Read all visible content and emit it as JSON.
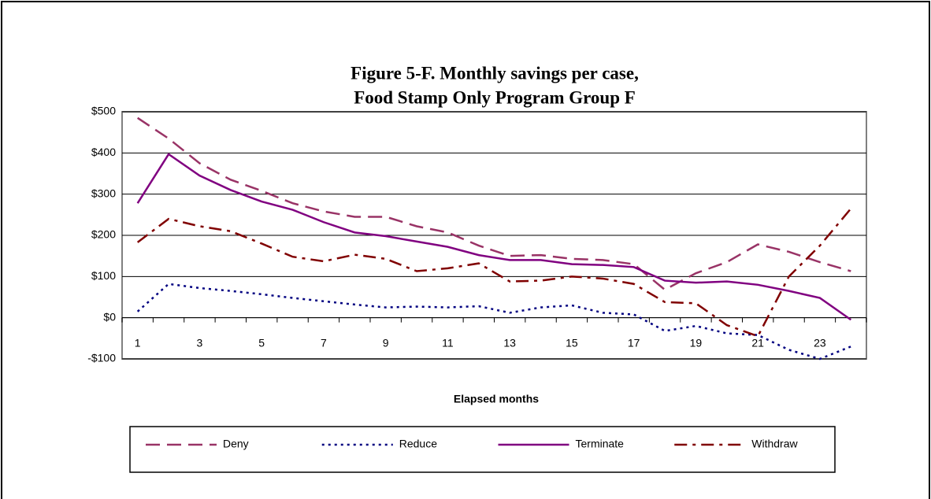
{
  "chart_data": {
    "type": "line",
    "title": [
      "Figure 5-F.  Monthly savings per case,",
      "Food Stamp Only Program Group F"
    ],
    "x_label": "Elapsed months",
    "categories": [
      "1",
      null,
      "3",
      null,
      "5",
      null,
      "7",
      null,
      "9",
      null,
      "11",
      null,
      "13",
      null,
      "15",
      null,
      "17",
      null,
      "19",
      null,
      "21",
      null,
      "23",
      null
    ],
    "ylim": [
      -100,
      500
    ],
    "yticks": [
      {
        "value": -100,
        "label": "-$100"
      },
      {
        "value": 0,
        "label": "$0"
      },
      {
        "value": 100,
        "label": "$100"
      },
      {
        "value": 200,
        "label": "$200"
      },
      {
        "value": 300,
        "label": "$300"
      },
      {
        "value": 400,
        "label": "$400"
      },
      {
        "value": 500,
        "label": "$500"
      }
    ],
    "grid": true,
    "legend": "bottom",
    "series": [
      {
        "name": "Deny",
        "color": "#993366",
        "style": "dashed",
        "values": [
          485,
          435,
          375,
          335,
          308,
          278,
          258,
          245,
          245,
          222,
          207,
          175,
          150,
          152,
          143,
          140,
          130,
          68,
          108,
          135,
          178,
          160,
          135,
          113
        ]
      },
      {
        "name": "Reduce",
        "color": "#000080",
        "style": "dotted",
        "values": [
          15,
          82,
          72,
          65,
          57,
          48,
          40,
          32,
          25,
          27,
          25,
          28,
          12,
          25,
          30,
          12,
          8,
          -32,
          -20,
          -38,
          -42,
          -78,
          -100,
          -70
        ]
      },
      {
        "name": "Terminate",
        "color": "#800080",
        "style": "solid",
        "values": [
          278,
          397,
          345,
          310,
          282,
          262,
          232,
          207,
          198,
          185,
          172,
          152,
          140,
          140,
          130,
          128,
          123,
          90,
          85,
          88,
          80,
          65,
          48,
          -5
        ]
      },
      {
        "name": "Withdraw",
        "color": "#800000",
        "style": "dashdot",
        "values": [
          183,
          240,
          222,
          210,
          180,
          148,
          137,
          153,
          143,
          113,
          120,
          132,
          88,
          90,
          100,
          95,
          82,
          38,
          35,
          -18,
          -45,
          100,
          175,
          265
        ]
      }
    ]
  }
}
